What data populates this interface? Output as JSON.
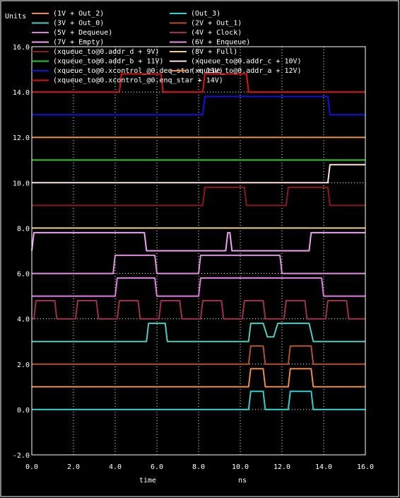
{
  "window": {
    "background": "#000000",
    "frame": "#ffffff",
    "text_color": "#ffffff"
  },
  "chart_data": {
    "type": "line",
    "ylabel": "Units",
    "xlabel": "time",
    "x_unit": "ns",
    "xlim": [
      0,
      16
    ],
    "ylim": [
      -2,
      16
    ],
    "xticks": [
      0,
      2,
      4,
      6,
      8,
      10,
      12,
      14,
      16
    ],
    "yticks": [
      -2,
      0,
      2,
      4,
      6,
      8,
      10,
      12,
      14,
      16
    ],
    "xtick_labels": [
      "0.0",
      "2.0",
      "4.0",
      "6.0",
      "8.0",
      "10.0",
      "12.0",
      "14.0",
      "16.0"
    ],
    "ytick_labels": [
      "-2.0",
      "0.0",
      "2.0",
      "4.0",
      "6.0",
      "8.0",
      "10.0",
      "12.0",
      "14.0",
      "16.0"
    ],
    "grid": true,
    "legend_position": "top",
    "series": [
      {
        "name": "(1V + Out_2)",
        "color": "#f08a4b",
        "x": [
          0,
          10.4,
          10.5,
          11.1,
          11.2,
          12.3,
          12.4,
          13.4,
          13.5,
          16
        ],
        "y": [
          1,
          1,
          1.8,
          1.8,
          1,
          1,
          1.8,
          1.8,
          1,
          1
        ]
      },
      {
        "name": "(Out_3)",
        "color": "#2ad2d2",
        "x": [
          0,
          10.4,
          10.5,
          11.1,
          11.2,
          12.3,
          12.4,
          13.4,
          13.5,
          16
        ],
        "y": [
          0,
          0,
          0.8,
          0.8,
          0,
          0,
          0.8,
          0.8,
          0,
          0
        ]
      },
      {
        "name": "(3V + Out_0)",
        "color": "#4ecdc4",
        "x": [
          0,
          5.5,
          5.6,
          6.4,
          6.5,
          6.8,
          7.2,
          10.4,
          10.5,
          11.1,
          11.3,
          11.6,
          11.8,
          12.0,
          13.3,
          13.5,
          16
        ],
        "y": [
          3,
          3,
          3.8,
          3.8,
          3,
          3,
          3,
          3,
          3.8,
          3.8,
          3.2,
          3.2,
          3.8,
          3.8,
          3.8,
          3,
          3
        ]
      },
      {
        "name": "(2V + Out_1)",
        "color": "#b5512a",
        "x": [
          0,
          10.4,
          10.5,
          11.1,
          11.2,
          12.3,
          12.4,
          13.4,
          13.5,
          16
        ],
        "y": [
          2,
          2,
          2.8,
          2.8,
          2,
          2,
          2.8,
          2.8,
          2,
          2
        ]
      },
      {
        "name": "(5V + Dequeue)",
        "color": "#e07be0",
        "x": [
          0,
          4.0,
          4.1,
          5.9,
          6.0,
          8.0,
          8.1,
          13.9,
          14.0,
          16
        ],
        "y": [
          5,
          5,
          5.8,
          5.8,
          5,
          5,
          5.8,
          5.8,
          5,
          5
        ]
      },
      {
        "name": "(4V + Clock)",
        "color": "#a0304a",
        "x": [
          0,
          0.1,
          0.2,
          1.1,
          1.2,
          2.1,
          2.2,
          3.1,
          3.2,
          4.1,
          4.2,
          5.1,
          5.2,
          6.1,
          6.2,
          7.1,
          7.2,
          8.1,
          8.2,
          9.1,
          9.2,
          10.1,
          10.2,
          11.1,
          11.2,
          12.1,
          12.2,
          13.1,
          13.2,
          14.1,
          14.2,
          15.1,
          15.2,
          16
        ],
        "y": [
          4,
          4,
          4.8,
          4.8,
          4,
          4,
          4.8,
          4.8,
          4,
          4,
          4.8,
          4.8,
          4,
          4,
          4.8,
          4.8,
          4,
          4,
          4.8,
          4.8,
          4,
          4,
          4.8,
          4.8,
          4,
          4,
          4.8,
          4.8,
          4,
          4,
          4.8,
          4.8,
          4,
          4
        ]
      },
      {
        "name": "(7V + Empty)",
        "color": "#f0a0f0",
        "x": [
          0,
          0.1,
          5.4,
          5.5,
          9.3,
          9.4,
          9.5,
          9.6,
          13.3,
          13.4,
          16
        ],
        "y": [
          7,
          7.8,
          7.8,
          7,
          7,
          7.8,
          7.8,
          7,
          7,
          7.8,
          7.8
        ]
      },
      {
        "name": "(6V + Enqueue)",
        "color": "#e090e0",
        "x": [
          0,
          3.9,
          4.0,
          5.9,
          6.0,
          8.0,
          8.1,
          11.9,
          12.0,
          16
        ],
        "y": [
          6,
          6,
          6.8,
          6.8,
          6,
          6,
          6.8,
          6.8,
          6,
          6
        ]
      },
      {
        "name": "(xqueue_to@0.addr_d + 9V)",
        "color": "#8b1a1a",
        "x": [
          0,
          8.2,
          8.3,
          10.2,
          10.3,
          12.2,
          12.3,
          14.2,
          14.3,
          16
        ],
        "y": [
          9,
          9,
          9.8,
          9.8,
          9,
          9,
          9.8,
          9.8,
          9,
          9
        ]
      },
      {
        "name": "(8V + Full)",
        "color": "#f0d080",
        "x": [
          0,
          16
        ],
        "y": [
          8,
          8
        ]
      },
      {
        "name": "(xqueue_to@0.addr_b + 11V)",
        "color": "#22cc22",
        "x": [
          0,
          16
        ],
        "y": [
          11,
          11
        ]
      },
      {
        "name": "(xqueue_to@0.addr_c + 10V)",
        "color": "#ffe0e0",
        "x": [
          0,
          14.2,
          14.3,
          16
        ],
        "y": [
          10,
          10,
          10.8,
          10.8
        ]
      },
      {
        "name": "(xqueue_to@0.xcontrol_@0.deq_star + 13V)",
        "color": "#1111dd",
        "x": [
          0,
          8.2,
          8.3,
          14.2,
          14.3,
          16
        ],
        "y": [
          13,
          13,
          13.8,
          13.8,
          13,
          13
        ]
      },
      {
        "name": "(xqueue_to@0.addr_a + 12V)",
        "color": "#e89030",
        "x": [
          0,
          16
        ],
        "y": [
          12,
          12
        ]
      },
      {
        "name": "(xqueue_to@0.xcontrol_@0.enq_star + 14V)",
        "color": "#dd1111",
        "x": [
          0,
          4.2,
          4.3,
          6.2,
          6.3,
          8.2,
          8.3,
          10.3,
          10.4,
          16
        ],
        "y": [
          14,
          14,
          14.8,
          14.8,
          14,
          14,
          14.8,
          14.8,
          14,
          14
        ]
      }
    ]
  }
}
